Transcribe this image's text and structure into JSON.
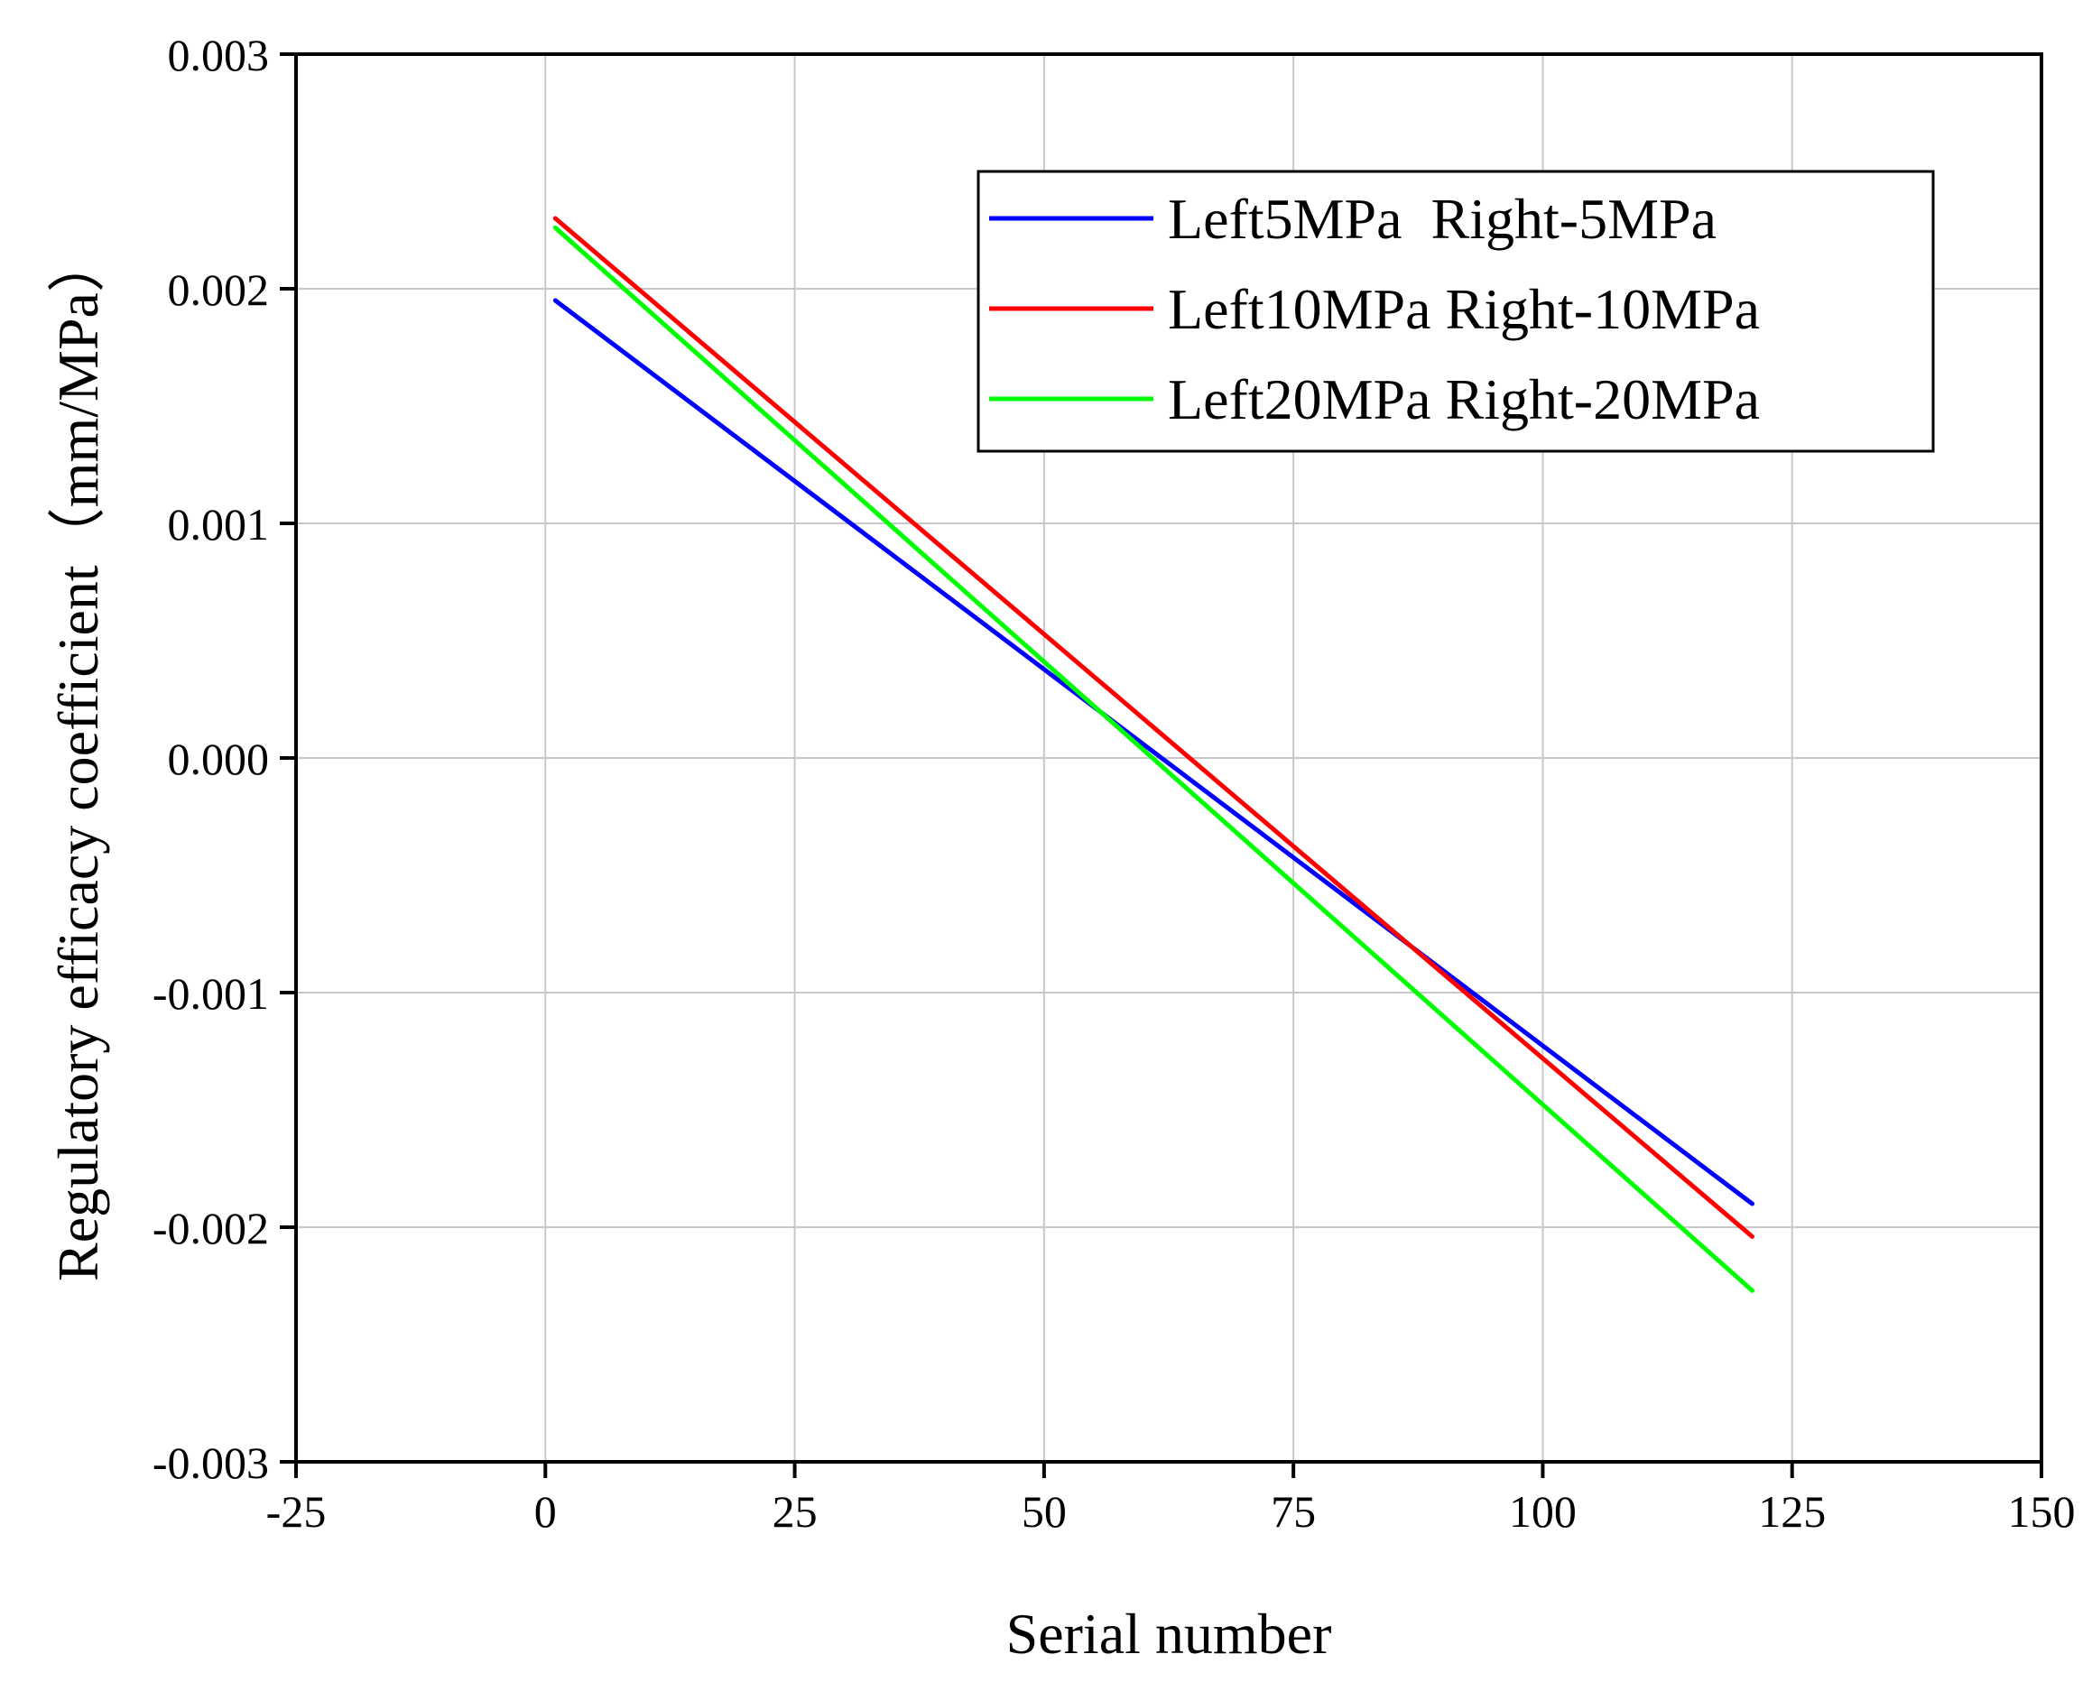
{
  "chart_data": {
    "type": "line",
    "title": "",
    "xlabel": "Serial number",
    "ylabel": "Regulatory efficacy coefficient（mm/MPa）",
    "xlim": [
      -25,
      150
    ],
    "ylim": [
      -0.003,
      0.003
    ],
    "xticks": [
      "-25",
      "0",
      "25",
      "50",
      "75",
      "100",
      "125",
      "150"
    ],
    "yticks": [
      "-0.003",
      "-0.002",
      "-0.001",
      "0.000",
      "0.001",
      "0.002",
      "0.003"
    ],
    "grid": true,
    "legend_position": "top-right",
    "series": [
      {
        "name": "Left5MPa  Right-5MPa",
        "color": "#0000ff",
        "x": [
          1,
          121
        ],
        "values": [
          0.00195,
          -0.0019
        ]
      },
      {
        "name": "Left10MPa Right-10MPa",
        "color": "#ff0000",
        "x": [
          1,
          121
        ],
        "values": [
          0.0023,
          -0.00204
        ]
      },
      {
        "name": "Left20MPa Right-20MPa",
        "color": "#00ff00",
        "x": [
          1,
          121
        ],
        "values": [
          0.00226,
          -0.00227
        ]
      }
    ]
  }
}
